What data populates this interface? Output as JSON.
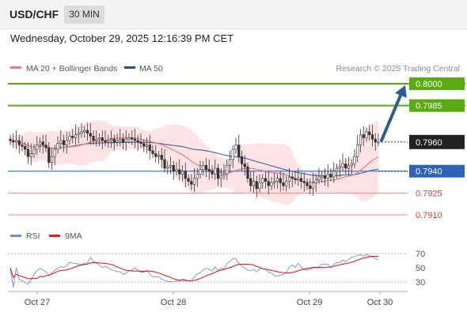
{
  "header": {
    "symbol": "USD/CHF",
    "timeframe": "30 MIN",
    "datetime": "Wednesday, October 29, 2025 12:16:39 PM CET"
  },
  "colors": {
    "candle_up": "#ffffff",
    "candle_down": "#333333",
    "ma20": "#f07a7a",
    "ma50": "#4a6bb0",
    "bollinger_fill": "#fde3e3",
    "resistance": "#5aaa14",
    "support": "#4a8fe0",
    "minor_level": "#ef8585",
    "arrow": "#2d5b9a",
    "rsi": "#6a8ee0",
    "rsi_ma": "#e02020"
  },
  "chart_data": [
    {
      "type": "candlestick",
      "legend": [
        {
          "name": "MA 20 + Bollinger Bands",
          "color": "#f07a7a"
        },
        {
          "name": "MA 50",
          "color": "#4a6bb0"
        }
      ],
      "legend_position": "top-left",
      "attribution": "Research © 2025 Trading Central",
      "ylim": [
        0.7902,
        0.8007
      ],
      "grid": false,
      "x_ticks": [
        "Oct 27",
        "Oct 28",
        "Oct 29",
        "Oct 30"
      ],
      "levels": [
        {
          "value": 0.8,
          "label": "0.8000",
          "kind": "resistance"
        },
        {
          "value": 0.7985,
          "label": "0.7985",
          "kind": "resistance"
        },
        {
          "value": 0.794,
          "label": "0.7940",
          "kind": "support"
        },
        {
          "value": 0.7925,
          "label": "0.7925",
          "kind": "minor"
        },
        {
          "value": 0.791,
          "label": "0.7910",
          "kind": "minor"
        }
      ],
      "last_price": {
        "value": 0.796,
        "label": "0.7960"
      },
      "forecast_arrow": {
        "from": 0.796,
        "to": 0.8
      },
      "close": [
        0.7961,
        0.796,
        0.7961,
        0.7958,
        0.7957,
        0.7955,
        0.795,
        0.7952,
        0.7955,
        0.7958,
        0.796,
        0.7958,
        0.7956,
        0.7946,
        0.795,
        0.7955,
        0.7959,
        0.7961,
        0.7958,
        0.7961,
        0.7964,
        0.7963,
        0.7965,
        0.7966,
        0.7967,
        0.7968,
        0.7966,
        0.7964,
        0.7961,
        0.7962,
        0.7963,
        0.7961,
        0.796,
        0.7961,
        0.7962,
        0.796,
        0.7961,
        0.7962,
        0.796,
        0.7962,
        0.7963,
        0.7962,
        0.7961,
        0.796,
        0.7959,
        0.7957,
        0.7958,
        0.7954,
        0.7952,
        0.795,
        0.7951,
        0.7948,
        0.7942,
        0.7943,
        0.7944,
        0.794,
        0.7941,
        0.7938,
        0.794,
        0.7935,
        0.7933,
        0.7931,
        0.7935,
        0.7938,
        0.7941,
        0.7944,
        0.7941,
        0.794,
        0.7938,
        0.7942,
        0.7935,
        0.7937,
        0.7938,
        0.7944,
        0.7948,
        0.7955,
        0.7958,
        0.795,
        0.7945,
        0.7943,
        0.7935,
        0.793,
        0.7933,
        0.7928,
        0.7932,
        0.7935,
        0.7933,
        0.793,
        0.7932,
        0.7933,
        0.7935,
        0.7932,
        0.793,
        0.7933,
        0.7936,
        0.7935,
        0.7934,
        0.7935,
        0.7933,
        0.7932,
        0.793,
        0.7928,
        0.7932,
        0.7934,
        0.7936,
        0.7937,
        0.7935,
        0.7938,
        0.7936,
        0.794,
        0.7942,
        0.7943,
        0.7945,
        0.7942,
        0.7944,
        0.7945,
        0.795,
        0.7958,
        0.7965,
        0.7963,
        0.7967,
        0.7965,
        0.7962,
        0.796,
        0.796
      ]
    },
    {
      "type": "line",
      "legend": [
        {
          "name": "RSI",
          "color": "#6a8ee0"
        },
        {
          "name": "9MA",
          "color": "#e02020"
        }
      ],
      "legend_position": "top-left",
      "ylim": [
        20,
        80
      ],
      "y_ticks": [
        70,
        50,
        30
      ],
      "x_ticks": [
        "Oct 27",
        "Oct 28",
        "Oct 29",
        "Oct 30"
      ]
    }
  ]
}
